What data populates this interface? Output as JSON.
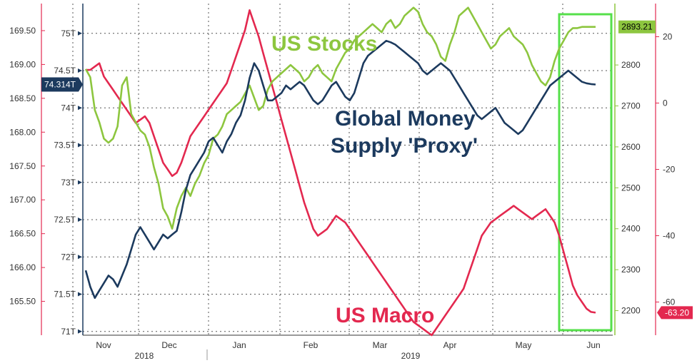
{
  "chart_data": {
    "type": "line",
    "annotations": {
      "stocks": "US Stocks",
      "money_line1": "Global Money",
      "money_line2": "Supply 'Proxy'",
      "macro": "US Macro"
    },
    "x_axis": {
      "months": [
        "Nov",
        "Dec",
        "Jan",
        "Feb",
        "Mar",
        "Apr",
        "May",
        "Jun"
      ],
      "years": [
        "2018",
        "2019"
      ]
    },
    "axes": {
      "far_left": {
        "min": 165.0,
        "max": 169.9,
        "ticks": [
          "165.50",
          "166.00",
          "166.50",
          "167.00",
          "167.50",
          "168.00",
          "168.50",
          "169.00",
          "169.50"
        ]
      },
      "inner_left": {
        "min": 70.95,
        "max": 75.4,
        "ticks": [
          "71T",
          "71.5T",
          "72T",
          "72.5T",
          "73T",
          "73.5T",
          "74T",
          "74.5T",
          "75T"
        ]
      },
      "inner_right": {
        "min": 2140,
        "max": 2950,
        "ticks": [
          "2200",
          "2300",
          "2400",
          "2500",
          "2600",
          "2700",
          "2800"
        ]
      },
      "far_right": {
        "min": -70,
        "max": 30,
        "ticks": [
          "20",
          "0",
          "-20",
          "-40",
          "-60"
        ]
      }
    },
    "series": [
      {
        "name": "US Stocks",
        "axis": "inner_right",
        "color": "#8dc63f",
        "last_label": "2893.21",
        "x": [
          0,
          2,
          4,
          6,
          8,
          10,
          12,
          14,
          16,
          18,
          20,
          22,
          24,
          26,
          28,
          30,
          32,
          34,
          36,
          38,
          40,
          42,
          44,
          46,
          48,
          50,
          52,
          54,
          56,
          58,
          60,
          62,
          64,
          66,
          68,
          70,
          72,
          74,
          76,
          78,
          80,
          82,
          84,
          86,
          88,
          90,
          92,
          94,
          96,
          98,
          100,
          102,
          104,
          106,
          108,
          110,
          112,
          114,
          116,
          118,
          120,
          122,
          124,
          126,
          128,
          130,
          132,
          134,
          136,
          138,
          140,
          142,
          144,
          146,
          148,
          150,
          152,
          154,
          156,
          158,
          160,
          162,
          164,
          166,
          168,
          170,
          172,
          174,
          176,
          178,
          180,
          182,
          184,
          186,
          188,
          190,
          192,
          194,
          196,
          198,
          200,
          202,
          204,
          206,
          208,
          210,
          212,
          214,
          216,
          218,
          220,
          222,
          224
        ],
        "y": [
          2790,
          2770,
          2690,
          2660,
          2620,
          2610,
          2620,
          2650,
          2750,
          2770,
          2680,
          2660,
          2640,
          2630,
          2600,
          2550,
          2510,
          2450,
          2430,
          2400,
          2450,
          2480,
          2500,
          2480,
          2510,
          2530,
          2560,
          2580,
          2620,
          2630,
          2650,
          2680,
          2690,
          2700,
          2710,
          2730,
          2750,
          2720,
          2690,
          2700,
          2740,
          2760,
          2770,
          2780,
          2790,
          2800,
          2790,
          2780,
          2760,
          2770,
          2790,
          2800,
          2780,
          2770,
          2760,
          2790,
          2810,
          2830,
          2840,
          2860,
          2870,
          2880,
          2890,
          2900,
          2890,
          2880,
          2900,
          2910,
          2890,
          2900,
          2920,
          2930,
          2940,
          2930,
          2900,
          2880,
          2870,
          2850,
          2820,
          2810,
          2850,
          2880,
          2920,
          2930,
          2940,
          2920,
          2900,
          2880,
          2860,
          2840,
          2850,
          2870,
          2880,
          2890,
          2870,
          2860,
          2850,
          2830,
          2800,
          2780,
          2760,
          2750,
          2770,
          2810,
          2840,
          2860,
          2880,
          2890,
          2890,
          2893,
          2893,
          2893,
          2893
        ]
      },
      {
        "name": "Global Money Supply 'Proxy'",
        "axis": "inner_left",
        "color": "#1c3a5e",
        "last_label": "74.314T",
        "x": [
          0,
          2,
          4,
          6,
          8,
          10,
          12,
          14,
          16,
          18,
          20,
          22,
          24,
          26,
          28,
          30,
          32,
          34,
          36,
          38,
          40,
          42,
          44,
          46,
          48,
          50,
          52,
          54,
          56,
          58,
          60,
          62,
          64,
          66,
          68,
          70,
          72,
          74,
          76,
          78,
          80,
          82,
          84,
          86,
          88,
          90,
          92,
          94,
          96,
          98,
          100,
          102,
          104,
          106,
          108,
          110,
          112,
          114,
          116,
          118,
          120,
          122,
          124,
          126,
          128,
          130,
          132,
          134,
          136,
          138,
          140,
          142,
          144,
          146,
          148,
          150,
          152,
          154,
          156,
          158,
          160,
          162,
          164,
          166,
          168,
          170,
          172,
          174,
          176,
          178,
          180,
          182,
          184,
          186,
          188,
          190,
          192,
          194,
          196,
          198,
          200,
          202,
          204,
          206,
          208,
          210,
          212,
          214,
          216,
          218,
          220,
          222,
          224
        ],
        "y": [
          71.82,
          71.6,
          71.45,
          71.55,
          71.65,
          71.75,
          71.7,
          71.6,
          71.75,
          71.9,
          72.1,
          72.3,
          72.4,
          72.3,
          72.2,
          72.1,
          72.2,
          72.3,
          72.25,
          72.3,
          72.35,
          72.6,
          72.9,
          73.1,
          73.2,
          73.3,
          73.4,
          73.55,
          73.6,
          73.5,
          73.4,
          73.55,
          73.65,
          73.8,
          73.9,
          74.1,
          74.4,
          74.6,
          74.5,
          74.3,
          74.1,
          74.1,
          74.15,
          74.2,
          74.3,
          74.25,
          74.3,
          74.35,
          74.3,
          74.2,
          74.1,
          74.05,
          74.1,
          74.2,
          74.3,
          74.35,
          74.25,
          74.15,
          74.1,
          74.2,
          74.4,
          74.6,
          74.7,
          74.75,
          74.8,
          74.85,
          74.9,
          74.88,
          74.85,
          74.8,
          74.75,
          74.7,
          74.65,
          74.6,
          74.5,
          74.45,
          74.5,
          74.55,
          74.6,
          74.55,
          74.5,
          74.4,
          74.3,
          74.2,
          74.1,
          74.0,
          73.9,
          73.85,
          73.9,
          73.95,
          74.0,
          73.9,
          73.8,
          73.75,
          73.7,
          73.65,
          73.7,
          73.8,
          73.9,
          74.0,
          74.1,
          74.2,
          74.3,
          74.35,
          74.4,
          74.45,
          74.5,
          74.45,
          74.4,
          74.35,
          74.33,
          74.32,
          74.314
        ]
      },
      {
        "name": "US Macro",
        "axis": "far_right",
        "color": "#e3284f",
        "last_label": "-63.20",
        "x": [
          0,
          2,
          4,
          6,
          8,
          10,
          12,
          14,
          16,
          18,
          20,
          22,
          24,
          26,
          28,
          30,
          32,
          34,
          36,
          38,
          40,
          42,
          44,
          46,
          48,
          50,
          52,
          54,
          56,
          58,
          60,
          62,
          64,
          66,
          68,
          70,
          72,
          74,
          76,
          78,
          80,
          82,
          84,
          86,
          88,
          90,
          92,
          94,
          96,
          98,
          100,
          102,
          104,
          106,
          108,
          110,
          112,
          114,
          116,
          118,
          120,
          122,
          124,
          126,
          128,
          130,
          132,
          134,
          136,
          138,
          140,
          142,
          144,
          146,
          148,
          150,
          152,
          154,
          156,
          158,
          160,
          162,
          164,
          166,
          168,
          170,
          172,
          174,
          176,
          178,
          180,
          182,
          184,
          186,
          188,
          190,
          192,
          194,
          196,
          198,
          200,
          202,
          204,
          206,
          208,
          210,
          212,
          214,
          216,
          218,
          220,
          222,
          224
        ],
        "y": [
          10,
          10,
          11,
          12,
          8,
          6,
          4,
          2,
          0,
          -2,
          -4,
          -6,
          -5,
          -4,
          -6,
          -10,
          -14,
          -18,
          -20,
          -22,
          -21,
          -18,
          -14,
          -10,
          -8,
          -6,
          -4,
          -2,
          0,
          2,
          4,
          6,
          10,
          14,
          18,
          22,
          28,
          24,
          20,
          15,
          10,
          5,
          0,
          -5,
          -10,
          -15,
          -20,
          -25,
          -30,
          -34,
          -38,
          -40,
          -39,
          -38,
          -36,
          -34,
          -35,
          -36,
          -38,
          -40,
          -42,
          -44,
          -46,
          -48,
          -50,
          -52,
          -54,
          -56,
          -58,
          -60,
          -62,
          -64,
          -66,
          -67,
          -68,
          -69,
          -70,
          -68,
          -66,
          -64,
          -62,
          -60,
          -58,
          -56,
          -52,
          -48,
          -44,
          -40,
          -38,
          -36,
          -35,
          -34,
          -33,
          -32,
          -31,
          -32,
          -33,
          -34,
          -35,
          -34,
          -33,
          -32,
          -34,
          -36,
          -40,
          -45,
          -50,
          -55,
          -58,
          -60,
          -62,
          -63,
          -63.2
        ]
      }
    ]
  }
}
